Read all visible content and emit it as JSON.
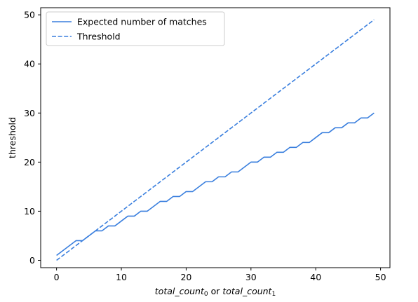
{
  "chart_data": {
    "type": "line",
    "title": "",
    "xlabel": {
      "parts": [
        {
          "text": "total_count",
          "italic": true
        },
        {
          "text": "0",
          "italic": false,
          "sub": true
        },
        {
          "text": " or ",
          "italic": false
        },
        {
          "text": "total_count",
          "italic": true
        },
        {
          "text": "1",
          "italic": false,
          "sub": true
        }
      ]
    },
    "ylabel": "threshold",
    "xlim": [
      -2.45,
      51.45
    ],
    "ylim": [
      -1.5,
      51.45
    ],
    "xticks": [
      0,
      10,
      20,
      30,
      40,
      50
    ],
    "yticks": [
      0,
      10,
      20,
      30,
      40,
      50
    ],
    "grid": false,
    "legend_position": "top-left",
    "x": [
      0,
      1,
      2,
      3,
      4,
      5,
      6,
      7,
      8,
      9,
      10,
      11,
      12,
      13,
      14,
      15,
      16,
      17,
      18,
      19,
      20,
      21,
      22,
      23,
      24,
      25,
      26,
      27,
      28,
      29,
      30,
      31,
      32,
      33,
      34,
      35,
      36,
      37,
      38,
      39,
      40,
      41,
      42,
      43,
      44,
      45,
      46,
      47,
      48,
      49
    ],
    "series": [
      {
        "name": "Expected number of matches",
        "style": "solid",
        "color": "#3a7fde",
        "values": [
          1,
          2,
          3,
          4,
          4,
          5,
          6,
          6,
          7,
          7,
          8,
          9,
          9,
          10,
          10,
          11,
          12,
          12,
          13,
          13,
          14,
          14,
          15,
          16,
          16,
          17,
          17,
          18,
          18,
          19,
          20,
          20,
          21,
          21,
          22,
          22,
          23,
          23,
          24,
          24,
          25,
          26,
          26,
          27,
          27,
          28,
          28,
          29,
          29,
          30
        ]
      },
      {
        "name": "Threshold",
        "style": "dashed",
        "color": "#3a7fde",
        "values": [
          0,
          1,
          2,
          3,
          4,
          5,
          6,
          7,
          8,
          9,
          10,
          11,
          12,
          13,
          14,
          15,
          16,
          17,
          18,
          19,
          20,
          21,
          22,
          23,
          24,
          25,
          26,
          27,
          28,
          29,
          30,
          31,
          32,
          33,
          34,
          35,
          36,
          37,
          38,
          39,
          40,
          41,
          42,
          43,
          44,
          45,
          46,
          47,
          48,
          49
        ]
      }
    ]
  }
}
